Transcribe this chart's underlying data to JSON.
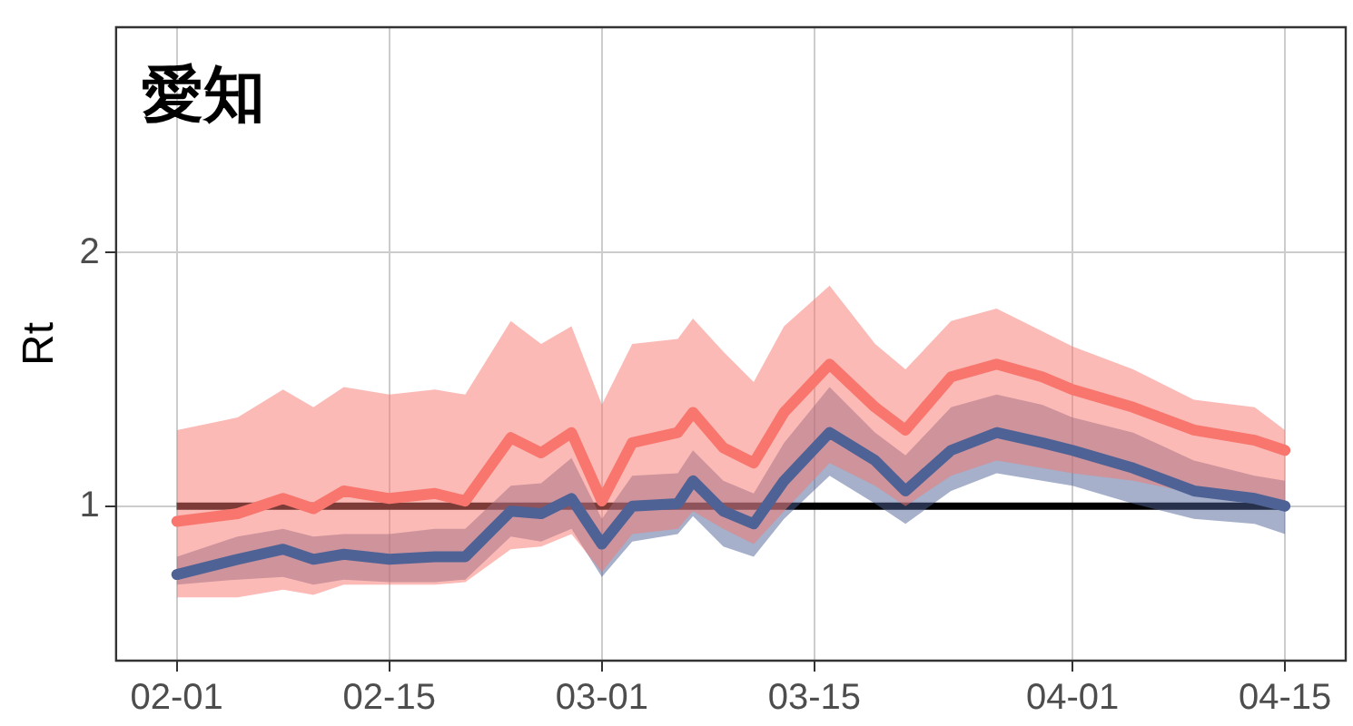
{
  "chart_data": {
    "type": "line",
    "title": "愛知",
    "ylabel": "Rt",
    "x": [
      "--02-01",
      "--02-05",
      "--02-08",
      "--02-10",
      "--02-12",
      "--02-15",
      "--02-18",
      "--02-20",
      "--02-23",
      "--02-25",
      "--02-27",
      "--03-01",
      "--03-03",
      "--03-06",
      "--03-07",
      "--03-09",
      "--03-11",
      "--03-13",
      "--03-16",
      "--03-19",
      "--03-21",
      "--03-24",
      "--03-27",
      "--03-30",
      "--04-01",
      "--04-05",
      "--04-09",
      "--04-13",
      "--04-15"
    ],
    "series": [
      {
        "color": "#f8766d",
        "values": [
          0.94,
          0.97,
          1.03,
          0.99,
          1.06,
          1.03,
          1.05,
          1.02,
          1.27,
          1.21,
          1.29,
          1.02,
          1.25,
          1.29,
          1.37,
          1.23,
          1.17,
          1.37,
          1.56,
          1.39,
          1.3,
          1.51,
          1.56,
          1.51,
          1.46,
          1.39,
          1.3,
          1.26,
          1.22
        ],
        "lower": [
          0.64,
          0.64,
          0.67,
          0.65,
          0.69,
          0.69,
          0.69,
          0.7,
          0.83,
          0.84,
          0.89,
          0.74,
          0.89,
          0.91,
          0.98,
          0.91,
          0.85,
          0.98,
          1.17,
          1.08,
          1.0,
          1.12,
          1.18,
          1.15,
          1.13,
          1.1,
          1.05,
          1.01,
          0.98
        ],
        "upper": [
          1.3,
          1.35,
          1.46,
          1.39,
          1.47,
          1.44,
          1.46,
          1.44,
          1.73,
          1.64,
          1.71,
          1.4,
          1.64,
          1.66,
          1.74,
          1.61,
          1.49,
          1.71,
          1.87,
          1.64,
          1.54,
          1.73,
          1.78,
          1.69,
          1.63,
          1.54,
          1.42,
          1.39,
          1.3
        ]
      },
      {
        "color": "#4e6296",
        "values": [
          0.73,
          0.79,
          0.83,
          0.79,
          0.81,
          0.79,
          0.8,
          0.8,
          0.98,
          0.97,
          1.03,
          0.85,
          1.0,
          1.01,
          1.1,
          0.98,
          0.93,
          1.1,
          1.29,
          1.18,
          1.06,
          1.22,
          1.29,
          1.25,
          1.22,
          1.15,
          1.06,
          1.03,
          1.0
        ],
        "lower": [
          0.69,
          0.71,
          0.72,
          0.69,
          0.71,
          0.7,
          0.7,
          0.71,
          0.88,
          0.86,
          0.91,
          0.72,
          0.86,
          0.89,
          0.96,
          0.84,
          0.8,
          0.95,
          1.12,
          1.01,
          0.93,
          1.06,
          1.13,
          1.1,
          1.08,
          1.01,
          0.95,
          0.93,
          0.89
        ],
        "upper": [
          0.8,
          0.88,
          0.91,
          0.88,
          0.89,
          0.89,
          0.91,
          0.91,
          1.08,
          1.09,
          1.19,
          0.95,
          1.12,
          1.13,
          1.22,
          1.1,
          1.05,
          1.25,
          1.47,
          1.29,
          1.2,
          1.39,
          1.44,
          1.4,
          1.35,
          1.29,
          1.18,
          1.12,
          1.1
        ]
      }
    ],
    "xlim": [
      "--01-28",
      "--04-19"
    ],
    "xticks": [
      {
        "value": "--02-01",
        "label": "02-01"
      },
      {
        "value": "--02-15",
        "label": "02-15"
      },
      {
        "value": "--03-01",
        "label": "03-01"
      },
      {
        "value": "--03-15",
        "label": "03-15"
      },
      {
        "value": "--04-01",
        "label": "04-01"
      },
      {
        "value": "--04-15",
        "label": "04-15"
      }
    ],
    "ylim": [
      0.39,
      2.89
    ],
    "yticks": [
      1,
      2
    ],
    "ref_lines": [
      {
        "axis": "y",
        "value": 1,
        "color": "#000000"
      }
    ],
    "grid": true,
    "legend": false,
    "marker": "none",
    "line_style": "solid"
  }
}
